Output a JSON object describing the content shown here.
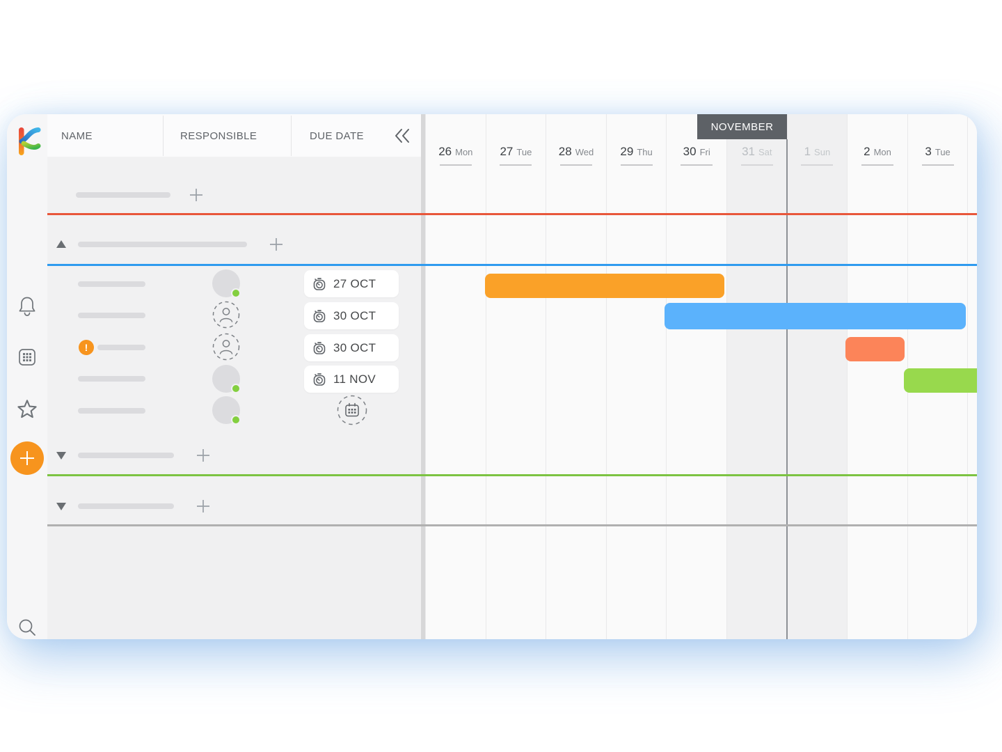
{
  "app": {
    "name": "timeline-gantt-view"
  },
  "colors": {
    "bar_orange": "#FAA128",
    "bar_blue": "#5BB2FC",
    "bar_salmon": "#FC8459",
    "bar_green": "#98D94D",
    "lane_red": "#E8573B",
    "lane_blue": "#2F9BEF",
    "lane_green": "#7CC342",
    "lane_gray": "#B0B0B0",
    "accent_orange": "#F7941E",
    "badge_gray": "#5D6166"
  },
  "table": {
    "columns": [
      "NAME",
      "RESPONSIBLE",
      "DUE DATE"
    ],
    "rows": [
      {
        "due": "27 OCT",
        "assignee": "assigned",
        "status": "green"
      },
      {
        "due": "30 OCT",
        "assignee": "unassigned",
        "status": "none"
      },
      {
        "due": "30 OCT",
        "assignee": "unassigned",
        "status": "none",
        "alert": "!"
      },
      {
        "due": "11 NOV",
        "assignee": "assigned",
        "status": "green"
      },
      {
        "due": "",
        "assignee": "assigned",
        "status": "green"
      }
    ]
  },
  "timeline": {
    "month_label": "NOVEMBER",
    "days": [
      {
        "num": "26",
        "name": "Mon",
        "weekend": false
      },
      {
        "num": "27",
        "name": "Tue",
        "weekend": false
      },
      {
        "num": "28",
        "name": "Wed",
        "weekend": false
      },
      {
        "num": "29",
        "name": "Thu",
        "weekend": false
      },
      {
        "num": "30",
        "name": "Fri",
        "weekend": false
      },
      {
        "num": "31",
        "name": "Sat",
        "weekend": true
      },
      {
        "num": "1",
        "name": "Sun",
        "weekend": true
      },
      {
        "num": "2",
        "name": "Mon",
        "weekend": false
      },
      {
        "num": "3",
        "name": "Tue",
        "weekend": false
      }
    ],
    "bars": [
      {
        "name": "task-bar-orange",
        "color_key": "bar_orange",
        "start_day_index": 0.99,
        "end_day_index": 4.96,
        "row": 0
      },
      {
        "name": "task-bar-blue",
        "color_key": "bar_blue",
        "start_day_index": 3.97,
        "end_day_index": 8.97,
        "row": 1
      },
      {
        "name": "task-bar-salmon",
        "color_key": "bar_salmon",
        "start_day_index": 6.97,
        "end_day_index": 7.96,
        "row": 2
      },
      {
        "name": "task-bar-green",
        "color_key": "bar_green",
        "start_day_index": 7.94,
        "end_day_index": 9.3,
        "row": 3
      }
    ]
  }
}
